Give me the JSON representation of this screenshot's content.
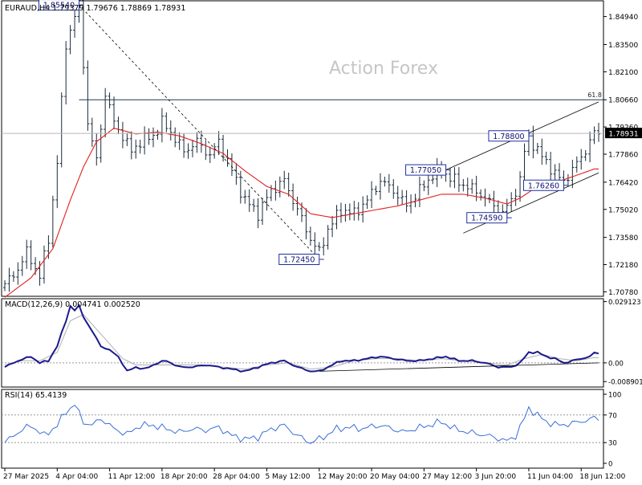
{
  "header": {
    "symbol_line": "EURAUD,H4  1.79379 1.79676 1.78869 1.78931",
    "watermark": "Action Forex"
  },
  "colors": {
    "price_bars": "#1a2a3a",
    "ma_line": "#e02020",
    "macd_main": "#1a1a8c",
    "macd_signal": "#b0b0b0",
    "rsi_line": "#3a6fd8",
    "channel_lines": "#000000",
    "grid": "#c8c8c8",
    "price_box": "#000000"
  },
  "chart_data": [
    {
      "type": "line",
      "name": "price",
      "ylim": [
        1.7055,
        1.8575
      ],
      "y_ticks": [
        "1.84940",
        "1.83500",
        "1.82100",
        "1.80660",
        "1.79260",
        "1.77860",
        "1.76420",
        "1.75020",
        "1.73580",
        "1.72180",
        "1.70780"
      ],
      "y_tick_values": [
        1.8494,
        1.835,
        1.821,
        1.8066,
        1.7926,
        1.7786,
        1.7642,
        1.7502,
        1.7358,
        1.7218,
        1.7078
      ],
      "x_ticks": [
        "27 Mar 2025",
        "4 Apr 04:00",
        "11 Apr 12:00",
        "18 Apr 20:00",
        "28 Apr 04:00",
        "5 May 12:00",
        "12 May 20:00",
        "20 May 04:00",
        "27 May 12:00",
        "3 Jun 20:00",
        "11 Jun 04:00",
        "18 Jun 12:00"
      ],
      "x_tick_positions": [
        0,
        12,
        24,
        36,
        48,
        60,
        72,
        84,
        96,
        108,
        120,
        132
      ],
      "close_anchors": [
        [
          0,
          1.712
        ],
        [
          2,
          1.716
        ],
        [
          5,
          1.728
        ],
        [
          8,
          1.716
        ],
        [
          10,
          1.735
        ],
        [
          12,
          1.775
        ],
        [
          14,
          1.835
        ],
        [
          16,
          1.85
        ],
        [
          17,
          1.855
        ],
        [
          19,
          1.795
        ],
        [
          21,
          1.775
        ],
        [
          23,
          1.81
        ],
        [
          25,
          1.795
        ],
        [
          27,
          1.788
        ],
        [
          29,
          1.78
        ],
        [
          31,
          1.785
        ],
        [
          34,
          1.788
        ],
        [
          36,
          1.795
        ],
        [
          38,
          1.79
        ],
        [
          41,
          1.78
        ],
        [
          44,
          1.785
        ],
        [
          47,
          1.778
        ],
        [
          49,
          1.785
        ],
        [
          52,
          1.77
        ],
        [
          55,
          1.755
        ],
        [
          58,
          1.748
        ],
        [
          61,
          1.76
        ],
        [
          64,
          1.765
        ],
        [
          67,
          1.75
        ],
        [
          70,
          1.735
        ],
        [
          72,
          1.728
        ],
        [
          74,
          1.74
        ],
        [
          77,
          1.75
        ],
        [
          80,
          1.748
        ],
        [
          83,
          1.755
        ],
        [
          86,
          1.765
        ],
        [
          89,
          1.76
        ],
        [
          92,
          1.752
        ],
        [
          95,
          1.76
        ],
        [
          98,
          1.768
        ],
        [
          100,
          1.77
        ],
        [
          103,
          1.765
        ],
        [
          106,
          1.762
        ],
        [
          109,
          1.758
        ],
        [
          112,
          1.752
        ],
        [
          114,
          1.748
        ],
        [
          116,
          1.755
        ],
        [
          118,
          1.765
        ],
        [
          119,
          1.78
        ],
        [
          120,
          1.788
        ],
        [
          122,
          1.78
        ],
        [
          124,
          1.775
        ],
        [
          126,
          1.768
        ],
        [
          128,
          1.765
        ],
        [
          130,
          1.77
        ],
        [
          132,
          1.778
        ],
        [
          133,
          1.78
        ],
        [
          134,
          1.785
        ],
        [
          135,
          1.789
        ]
      ],
      "ma_anchors": [
        [
          0,
          1.705
        ],
        [
          6,
          1.715
        ],
        [
          11,
          1.73
        ],
        [
          15,
          1.755
        ],
        [
          18,
          1.772
        ],
        [
          21,
          1.785
        ],
        [
          25,
          1.792
        ],
        [
          30,
          1.789
        ],
        [
          35,
          1.79
        ],
        [
          40,
          1.788
        ],
        [
          45,
          1.784
        ],
        [
          50,
          1.779
        ],
        [
          55,
          1.77
        ],
        [
          60,
          1.762
        ],
        [
          65,
          1.758
        ],
        [
          70,
          1.748
        ],
        [
          75,
          1.746
        ],
        [
          80,
          1.748
        ],
        [
          85,
          1.75
        ],
        [
          90,
          1.752
        ],
        [
          95,
          1.755
        ],
        [
          100,
          1.758
        ],
        [
          105,
          1.758
        ],
        [
          110,
          1.756
        ],
        [
          115,
          1.753
        ],
        [
          118,
          1.756
        ],
        [
          122,
          1.762
        ],
        [
          126,
          1.764
        ],
        [
          130,
          1.767
        ],
        [
          135,
          1.771
        ]
      ],
      "last_price": "1.78931",
      "level_label": "61.8",
      "level_value": 1.8066,
      "current_level_value": 1.7893,
      "annotations": [
        {
          "text": "1.85540",
          "x": 17,
          "y": 1.8554
        },
        {
          "text": "1.72450",
          "x": 72,
          "y": 1.7245
        },
        {
          "text": "1.77050",
          "x": 101,
          "y": 1.7705
        },
        {
          "text": "1.74590",
          "x": 115,
          "y": 1.7459
        },
        {
          "text": "1.78800",
          "x": 120,
          "y": 1.788
        },
        {
          "text": "1.76260",
          "x": 128,
          "y": 1.7626
        }
      ],
      "trendlines": [
        {
          "from": [
            17,
            1.8554
          ],
          "to": [
            72,
            1.7245
          ],
          "style": "dashed"
        },
        {
          "from": [
            101,
            1.7705
          ],
          "to": [
            136,
            1.8055
          ],
          "style": "solid"
        },
        {
          "from": [
            105,
            1.738
          ],
          "to": [
            136,
            1.769
          ],
          "style": "solid"
        }
      ]
    },
    {
      "type": "line",
      "name": "MACD",
      "title": "MACD(12,26,9) 0.004741 0.002520",
      "ylim": [
        -0.0115,
        0.0305
      ],
      "y_ticks": [
        "0.029123",
        "0.00",
        "-0.008901"
      ],
      "y_tick_values": [
        0.029123,
        0.0,
        -0.008901
      ],
      "main_anchors": [
        [
          0,
          -0.002
        ],
        [
          3,
          0.001
        ],
        [
          6,
          0.003
        ],
        [
          8,
          0.0
        ],
        [
          10,
          0.001
        ],
        [
          12,
          0.008
        ],
        [
          14,
          0.02
        ],
        [
          15,
          0.027
        ],
        [
          16,
          0.025
        ],
        [
          17,
          0.027
        ],
        [
          18,
          0.022
        ],
        [
          20,
          0.015
        ],
        [
          22,
          0.008
        ],
        [
          24,
          0.006
        ],
        [
          26,
          0.003
        ],
        [
          28,
          -0.004
        ],
        [
          30,
          -0.002
        ],
        [
          32,
          -0.003
        ],
        [
          35,
          0.0
        ],
        [
          37,
          0.001
        ],
        [
          40,
          -0.002
        ],
        [
          43,
          -0.002
        ],
        [
          46,
          -0.001
        ],
        [
          49,
          -0.002
        ],
        [
          52,
          -0.003
        ],
        [
          55,
          -0.004
        ],
        [
          58,
          -0.002
        ],
        [
          61,
          0.0
        ],
        [
          64,
          0.001
        ],
        [
          67,
          -0.002
        ],
        [
          70,
          -0.004
        ],
        [
          72,
          -0.004
        ],
        [
          74,
          -0.002
        ],
        [
          77,
          0.001
        ],
        [
          80,
          0.001
        ],
        [
          83,
          0.002
        ],
        [
          86,
          0.003
        ],
        [
          89,
          0.002
        ],
        [
          92,
          0.001
        ],
        [
          95,
          0.001
        ],
        [
          98,
          0.002
        ],
        [
          101,
          0.003
        ],
        [
          104,
          0.001
        ],
        [
          107,
          0.001
        ],
        [
          110,
          0.0
        ],
        [
          113,
          -0.002
        ],
        [
          116,
          -0.002
        ],
        [
          118,
          0.0
        ],
        [
          120,
          0.005
        ],
        [
          122,
          0.005
        ],
        [
          124,
          0.003
        ],
        [
          126,
          0.002
        ],
        [
          128,
          0.0
        ],
        [
          130,
          0.001
        ],
        [
          132,
          0.002
        ],
        [
          134,
          0.003
        ],
        [
          135,
          0.0047
        ]
      ],
      "signal_anchors": [
        [
          0,
          -0.001
        ],
        [
          4,
          0.001
        ],
        [
          8,
          0.001
        ],
        [
          12,
          0.005
        ],
        [
          15,
          0.02
        ],
        [
          18,
          0.023
        ],
        [
          21,
          0.016
        ],
        [
          24,
          0.009
        ],
        [
          27,
          0.002
        ],
        [
          30,
          -0.001
        ],
        [
          35,
          -0.001
        ],
        [
          40,
          -0.001
        ],
        [
          45,
          -0.001
        ],
        [
          50,
          -0.002
        ],
        [
          55,
          -0.003
        ],
        [
          60,
          -0.001
        ],
        [
          65,
          0.0
        ],
        [
          70,
          -0.003
        ],
        [
          75,
          -0.002
        ],
        [
          80,
          0.001
        ],
        [
          85,
          0.002
        ],
        [
          90,
          0.002
        ],
        [
          95,
          0.001
        ],
        [
          100,
          0.002
        ],
        [
          105,
          0.001
        ],
        [
          110,
          0.0
        ],
        [
          115,
          -0.001
        ],
        [
          119,
          0.002
        ],
        [
          123,
          0.004
        ],
        [
          127,
          0.002
        ],
        [
          131,
          0.001
        ],
        [
          135,
          0.0025
        ]
      ],
      "trendline": {
        "from": [
          72,
          -0.004
        ],
        "to": [
          136,
          0.0
        ]
      }
    },
    {
      "type": "line",
      "name": "RSI",
      "title": "RSI(14) 65.4139",
      "ylim": [
        0,
        100
      ],
      "y_ticks": [
        "100",
        "70",
        "30",
        "0"
      ],
      "y_tick_values": [
        100,
        70,
        30,
        0
      ],
      "levels": [
        70,
        30
      ],
      "anchors": [
        [
          0,
          30
        ],
        [
          3,
          45
        ],
        [
          6,
          55
        ],
        [
          9,
          40
        ],
        [
          12,
          55
        ],
        [
          14,
          75
        ],
        [
          16,
          85
        ],
        [
          18,
          60
        ],
        [
          20,
          55
        ],
        [
          22,
          65
        ],
        [
          25,
          50
        ],
        [
          28,
          42
        ],
        [
          31,
          55
        ],
        [
          34,
          55
        ],
        [
          37,
          50
        ],
        [
          40,
          45
        ],
        [
          43,
          50
        ],
        [
          46,
          48
        ],
        [
          49,
          52
        ],
        [
          52,
          40
        ],
        [
          55,
          35
        ],
        [
          58,
          38
        ],
        [
          61,
          50
        ],
        [
          64,
          55
        ],
        [
          67,
          40
        ],
        [
          70,
          30
        ],
        [
          73,
          38
        ],
        [
          76,
          50
        ],
        [
          79,
          52
        ],
        [
          82,
          50
        ],
        [
          85,
          55
        ],
        [
          88,
          52
        ],
        [
          91,
          45
        ],
        [
          94,
          50
        ],
        [
          97,
          55
        ],
        [
          100,
          60
        ],
        [
          103,
          50
        ],
        [
          106,
          45
        ],
        [
          109,
          42
        ],
        [
          112,
          38
        ],
        [
          115,
          32
        ],
        [
          117,
          40
        ],
        [
          119,
          65
        ],
        [
          120,
          80
        ],
        [
          122,
          70
        ],
        [
          124,
          60
        ],
        [
          127,
          55
        ],
        [
          130,
          58
        ],
        [
          133,
          62
        ],
        [
          135,
          65.4
        ]
      ]
    }
  ]
}
